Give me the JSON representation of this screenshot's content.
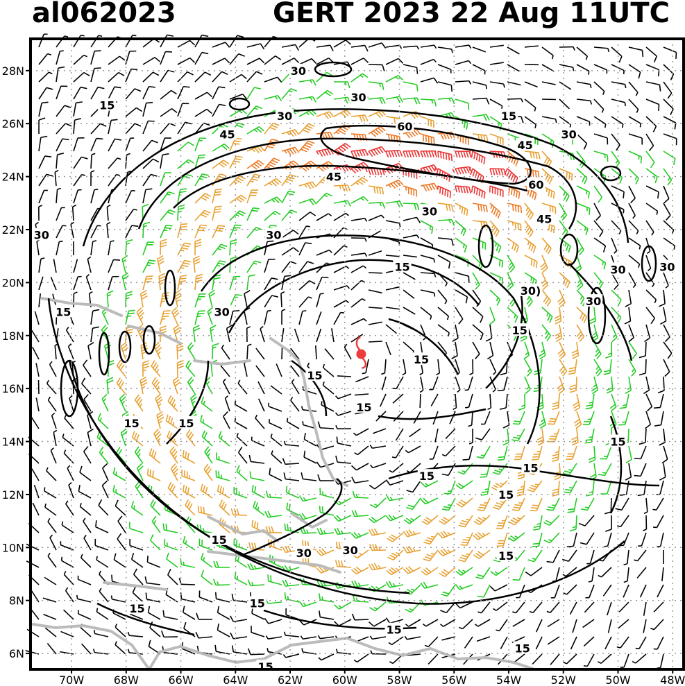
{
  "header": {
    "storm_id": "al062023",
    "title": "GERT 2023 22 Aug 11UTC"
  },
  "axes": {
    "lat_labels": [
      "28N",
      "26N",
      "24N",
      "22N",
      "20N",
      "18N",
      "16N",
      "14N",
      "12N",
      "10N",
      "8N",
      "6N"
    ],
    "lon_labels": [
      "70W",
      "68W",
      "66W",
      "64W",
      "62W",
      "60W",
      "58W",
      "56W",
      "54W",
      "52W",
      "50W",
      "48W"
    ],
    "lat_values": [
      28,
      26,
      24,
      22,
      20,
      18,
      16,
      14,
      12,
      10,
      8,
      6
    ],
    "lon_values": [
      -70,
      -68,
      -66,
      -64,
      -62,
      -60,
      -58,
      -56,
      -54,
      -52,
      -50,
      -48
    ],
    "lat_range": [
      5.4,
      29.2
    ],
    "lon_range": [
      -71.5,
      -47.6
    ],
    "grid": "dotted"
  },
  "storm_center": {
    "lat": 17.3,
    "lon": -59.4,
    "color": "#ee3b3b"
  },
  "contour_labels": [
    {
      "text": "15",
      "lon": -68.7,
      "lat": 26.7
    },
    {
      "text": "30",
      "lon": -61.7,
      "lat": 28.0
    },
    {
      "text": "30",
      "lon": -59.5,
      "lat": 27.0
    },
    {
      "text": "30",
      "lon": -62.2,
      "lat": 26.3
    },
    {
      "text": "15",
      "lon": -54.0,
      "lat": 26.3
    },
    {
      "text": "60",
      "lon": -57.8,
      "lat": 25.9
    },
    {
      "text": "45",
      "lon": -64.3,
      "lat": 25.6
    },
    {
      "text": "30",
      "lon": -51.8,
      "lat": 25.6
    },
    {
      "text": "45",
      "lon": -53.4,
      "lat": 25.2
    },
    {
      "text": "45",
      "lon": -60.4,
      "lat": 24.0
    },
    {
      "text": "60",
      "lon": -53.0,
      "lat": 23.7
    },
    {
      "text": "30",
      "lon": -56.9,
      "lat": 22.7
    },
    {
      "text": "45",
      "lon": -52.7,
      "lat": 22.4
    },
    {
      "text": "30",
      "lon": -62.6,
      "lat": 21.8
    },
    {
      "text": "30",
      "lon": -71.1,
      "lat": 21.8
    },
    {
      "text": "15",
      "lon": -57.9,
      "lat": 20.6
    },
    {
      "text": "30",
      "lon": -48.2,
      "lat": 20.6
    },
    {
      "text": "30",
      "lon": -50.0,
      "lat": 20.5
    },
    {
      "text": "30)",
      "lon": -53.2,
      "lat": 19.7
    },
    {
      "text": "30",
      "lon": -50.9,
      "lat": 19.3
    },
    {
      "text": "30",
      "lon": -64.5,
      "lat": 18.9
    },
    {
      "text": "15",
      "lon": -70.3,
      "lat": 18.9
    },
    {
      "text": "15",
      "lon": -53.6,
      "lat": 18.2
    },
    {
      "text": "15",
      "lon": -57.2,
      "lat": 17.1
    },
    {
      "text": "15",
      "lon": -61.1,
      "lat": 16.5
    },
    {
      "text": "15",
      "lon": -59.3,
      "lat": 15.3
    },
    {
      "text": "15",
      "lon": -67.8,
      "lat": 14.7
    },
    {
      "text": "15",
      "lon": -65.8,
      "lat": 14.7
    },
    {
      "text": "15",
      "lon": -50.0,
      "lat": 14.0
    },
    {
      "text": "15",
      "lon": -53.2,
      "lat": 13.0
    },
    {
      "text": "15",
      "lon": -57.0,
      "lat": 12.7
    },
    {
      "text": "15",
      "lon": -54.1,
      "lat": 12.0
    },
    {
      "text": "15",
      "lon": -64.6,
      "lat": 10.3
    },
    {
      "text": "30",
      "lon": -61.5,
      "lat": 9.8
    },
    {
      "text": "30",
      "lon": -59.8,
      "lat": 9.9
    },
    {
      "text": "15",
      "lon": -54.1,
      "lat": 9.7
    },
    {
      "text": "15",
      "lon": -63.2,
      "lat": 7.9
    },
    {
      "text": "15",
      "lon": -67.6,
      "lat": 7.7
    },
    {
      "text": "15",
      "lon": -58.2,
      "lat": 6.9
    },
    {
      "text": "15",
      "lon": -53.5,
      "lat": 6.2
    },
    {
      "text": "15",
      "lon": -62.9,
      "lat": 5.5
    }
  ],
  "wind_colors": {
    "calm": "#000000",
    "low": "#22cc22",
    "mid": "#e8a030",
    "high": "#ee7722",
    "top": "#ee3333"
  },
  "land_color": "#bbbbbb",
  "contour_color": "#000000"
}
